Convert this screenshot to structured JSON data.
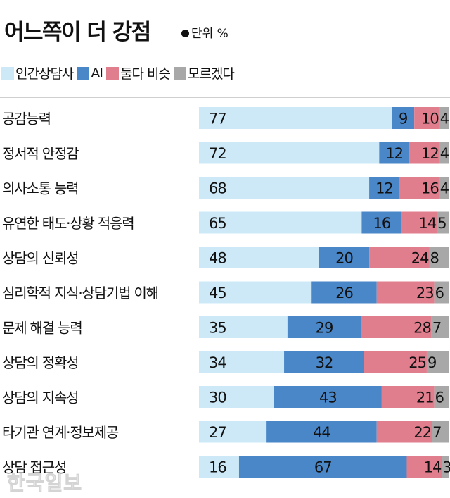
{
  "header": {
    "title": "어느쪽이 더 강점",
    "unit": "단위 %"
  },
  "colors": {
    "human": "#cde9f7",
    "ai": "#4a87c8",
    "both": "#e07e8e",
    "unknown": "#a8a8a8",
    "text": "#111111"
  },
  "watermark": "한국일보",
  "chart_data": {
    "type": "bar",
    "orientation": "horizontal",
    "stacked": true,
    "normalized": true,
    "title": "어느쪽이 더 강점",
    "unit": "단위 %",
    "legend": "top-left",
    "categories": [
      "공감능력",
      "정서적 안정감",
      "의사소통 능력",
      "유연한 태도·상황 적응력",
      "상담의 신뢰성",
      "심리학적 지식·상담기법 이해",
      "문제 해결 능력",
      "상담의 정확성",
      "상담의 지속성",
      "타기관 연계·정보제공",
      "상담 접근성"
    ],
    "series": [
      {
        "name": "인간상담사",
        "color": "#cde9f7",
        "values": [
          77,
          72,
          68,
          65,
          48,
          45,
          35,
          34,
          30,
          27,
          16
        ]
      },
      {
        "name": "AI",
        "color": "#4a87c8",
        "values": [
          9,
          12,
          12,
          16,
          20,
          26,
          29,
          32,
          43,
          44,
          67
        ]
      },
      {
        "name": "둘다 비슷",
        "color": "#e07e8e",
        "values": [
          10,
          12,
          16,
          14,
          24,
          23,
          28,
          25,
          21,
          22,
          14
        ]
      },
      {
        "name": "모르겠다",
        "color": "#a8a8a8",
        "values": [
          4,
          4,
          4,
          5,
          8,
          6,
          7,
          9,
          6,
          7,
          3
        ]
      }
    ]
  }
}
